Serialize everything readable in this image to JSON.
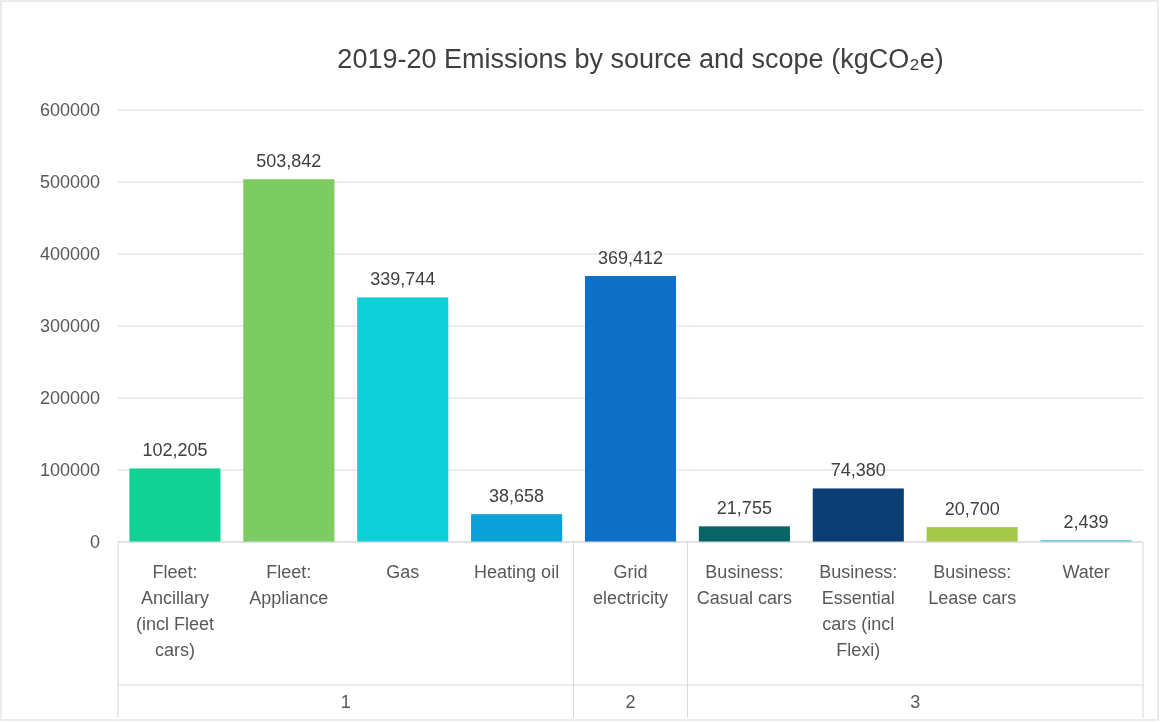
{
  "chart_data": {
    "type": "bar",
    "title": "2019-20 Emissions by source and scope (kgCO₂e)",
    "categories": [
      "Fleet: Ancillary (incl Fleet cars)",
      "Fleet: Appliance",
      "Gas",
      "Heating oil",
      "Grid electricity",
      "Business: Casual cars",
      "Business: Essential cars (incl Flexi)",
      "Business: Lease cars",
      "Water"
    ],
    "values": [
      102205,
      503842,
      339744,
      38658,
      369412,
      21755,
      74380,
      20700,
      2439
    ],
    "colors": [
      "#12d195",
      "#7dcb63",
      "#0fd0d8",
      "#0aa0d8",
      "#0e70c6",
      "#0a6466",
      "#0b3f73",
      "#a5c84a",
      "#4fc3e0"
    ],
    "value_labels": [
      "102,205",
      "503,842",
      "339,744",
      "38,658",
      "369,412",
      "21,755",
      "74,380",
      "20,700",
      "2,439"
    ],
    "ylim": [
      0,
      600000
    ],
    "yticks": [
      0,
      100000,
      200000,
      300000,
      400000,
      500000,
      600000
    ],
    "grid": "y",
    "annotations": [
      "1",
      "2",
      "3"
    ]
  }
}
